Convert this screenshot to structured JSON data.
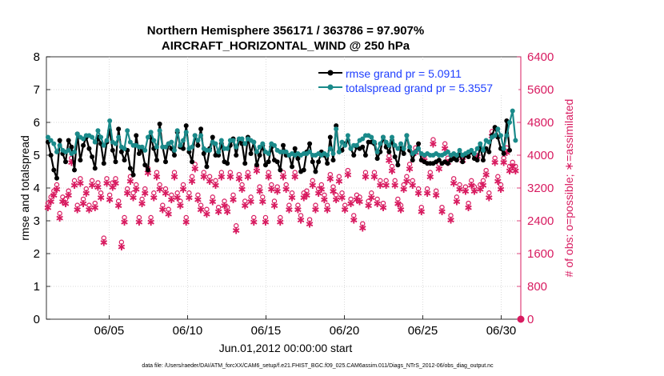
{
  "chart_data": {
    "type": "line",
    "title_line1": "Northern Hemisphere 356171 / 363786 = 97.907%",
    "title_line2": "AIRCRAFT_HORIZONTAL_WIND @ 250 hPa",
    "ylabel_left": "rmse and totalspread",
    "ylabel_right": "# of obs: o=possible; ∗=assimilated",
    "xlabel": "Jun.01,2012 00:00:00 start",
    "footer": "data file: /Users/raeder/DAI/ATM_forcXX/CAM6_setup/f.e21.FHIST_BGC.f09_025.CAM6assim.011/Diags_NTrS_2012-06/obs_diag_output.nc",
    "x_range": [
      1,
      31.25
    ],
    "y_left_range": [
      0,
      8
    ],
    "y_right_range": [
      0,
      6400
    ],
    "x_ticks": [
      {
        "value": 5,
        "label": "06/05"
      },
      {
        "value": 10,
        "label": "06/10"
      },
      {
        "value": 15,
        "label": "06/15"
      },
      {
        "value": 20,
        "label": "06/20"
      },
      {
        "value": 25,
        "label": "06/25"
      },
      {
        "value": 30,
        "label": "06/30"
      }
    ],
    "y_left_ticks": [
      "0",
      "1",
      "2",
      "3",
      "4",
      "5",
      "6",
      "7",
      "8"
    ],
    "y_right_ticks": [
      "0",
      "800",
      "1600",
      "2400",
      "3200",
      "4000",
      "4800",
      "5600",
      "6400"
    ],
    "colors": {
      "rmse": "#000000",
      "spread": "#1a8a8a",
      "obs": "#d81b60",
      "legend_text": "#1f3fff"
    },
    "series": [
      {
        "name": "rmse grand pr = 5.0911",
        "key": "rmse",
        "values": [
          5.4,
          5.0,
          4.55,
          4.3,
          5.45,
          5.05,
          4.8,
          5.45,
          5.25,
          4.55,
          5.65,
          4.85,
          5.3,
          5.55,
          5.2,
          4.95,
          4.6,
          5.55,
          5.35,
          4.75,
          5.4,
          5.75,
          5.15,
          4.8,
          5.8,
          5.1,
          4.85,
          5.15,
          4.6,
          4.4,
          5.6,
          5.05,
          5.15,
          4.7,
          4.55,
          5.55,
          5.2,
          4.85,
          5.95,
          5.25,
          4.8,
          5.35,
          5.2,
          5.0,
          5.7,
          5.25,
          5.2,
          5.9,
          5.1,
          4.8,
          5.6,
          5.3,
          5.8,
          5.05,
          4.65,
          5.2,
          5.55,
          5.0,
          5.0,
          5.35,
          4.8,
          4.75,
          5.3,
          5.5,
          5.0,
          5.45,
          5.35,
          4.75,
          5.55,
          5.05,
          5.4,
          4.7,
          5.0,
          5.3,
          4.7,
          4.8,
          5.25,
          4.85,
          4.8,
          4.55,
          5.3,
          5.0,
          5.0,
          4.65,
          5.2,
          4.9,
          4.5,
          4.55,
          5.1,
          5.35,
          4.8,
          4.5,
          4.8,
          5.1,
          5.0,
          4.75,
          5.55,
          4.85,
          5.9,
          5.1,
          5.15,
          5.35,
          5.45,
          5.2,
          5.0,
          5.25,
          5.2,
          5.25,
          5.0,
          5.4,
          5.4,
          5.35,
          4.9,
          5.1,
          5.55,
          5.25,
          5.1,
          5.45,
          4.95,
          4.7,
          5.2,
          5.05,
          5.6,
          5.15,
          4.85,
          5.1,
          5.35,
          4.85,
          4.8,
          4.75,
          4.75,
          4.75,
          4.8,
          4.85,
          4.75,
          4.8,
          4.75,
          4.85,
          4.9,
          4.85,
          5.0,
          4.8,
          5.0,
          4.95,
          5.1,
          4.9,
          4.85,
          5.25,
          4.85,
          5.2,
          5.1,
          5.6,
          5.85,
          5.55,
          5.2,
          5.05,
          6.05,
          5.15
        ]
      },
      {
        "name": "totalspread grand pr = 5.3557",
        "key": "spread",
        "values": [
          5.55,
          5.45,
          5.35,
          5.1,
          5.3,
          5.15,
          5.1,
          5.15,
          5.05,
          5.1,
          5.65,
          5.55,
          5.5,
          5.6,
          5.6,
          5.55,
          5.4,
          5.75,
          5.55,
          5.3,
          5.45,
          6.05,
          5.4,
          5.35,
          5.55,
          5.25,
          5.2,
          5.75,
          5.4,
          5.3,
          5.3,
          5.25,
          5.25,
          5.15,
          5.55,
          5.7,
          5.45,
          5.25,
          5.75,
          5.25,
          5.25,
          5.35,
          5.4,
          5.15,
          5.75,
          5.3,
          5.45,
          5.7,
          5.2,
          5.25,
          5.6,
          5.45,
          5.6,
          5.2,
          5.15,
          5.15,
          5.4,
          5.35,
          5.1,
          5.45,
          5.2,
          5.2,
          5.45,
          5.45,
          5.25,
          5.5,
          5.5,
          5.35,
          5.5,
          5.45,
          5.4,
          5.1,
          5.25,
          5.35,
          5.1,
          5.05,
          5.35,
          5.3,
          5.15,
          5.1,
          5.1,
          5.1,
          5.0,
          5.05,
          5.0,
          5.05,
          5.0,
          5.05,
          5.05,
          5.1,
          5.0,
          5.0,
          5.05,
          5.0,
          5.05,
          5.0,
          5.2,
          5.05,
          5.8,
          5.1,
          5.4,
          5.3,
          5.6,
          5.2,
          5.3,
          5.3,
          5.45,
          5.5,
          5.6,
          5.6,
          5.55,
          5.4,
          5.1,
          5.35,
          5.55,
          5.4,
          5.3,
          5.55,
          5.3,
          5.2,
          5.35,
          5.2,
          5.6,
          5.25,
          5.05,
          5.1,
          5.2,
          5.05,
          5.0,
          5.05,
          5.0,
          5.0,
          5.05,
          5.0,
          5.0,
          5.05,
          5.1,
          5.0,
          5.05,
          5.0,
          5.15,
          5.0,
          5.05,
          5.1,
          5.15,
          5.05,
          5.2,
          5.35,
          5.15,
          5.45,
          5.4,
          5.55,
          5.6,
          5.8,
          5.6,
          5.2,
          5.6,
          6.0,
          6.35,
          5.45
        ]
      }
    ],
    "obs_counts": [
      2750,
      2900,
      3050,
      3200,
      2500,
      2900,
      2850,
      3050,
      3850,
      3300,
      2700,
      3350,
      2850,
      3100,
      2700,
      3300,
      2750,
      3250,
      3000,
      1900,
      3350,
      2950,
      3250,
      3350,
      2800,
      1800,
      2400,
      3100,
      3400,
      3000,
      3200,
      2400,
      2850,
      3100,
      3600,
      2400,
      3000,
      3500,
      3200,
      2700,
      3100,
      2600,
      2950,
      3500,
      3000,
      2800,
      3200,
      2400,
      3000,
      3400,
      3700,
      2950,
      2700,
      3500,
      2600,
      3400,
      2900,
      3300,
      2650,
      3500,
      2800,
      2650,
      3500,
      2950,
      2200,
      3450,
      3200,
      2800,
      3500,
      2900,
      2400,
      3650,
      3150,
      2900,
      2400,
      3500,
      3200,
      2800,
      3150,
      2400,
      3500,
      3200,
      2700,
      3000,
      3500,
      2700,
      2450,
      3000,
      3050,
      2350,
      3300,
      2700,
      3100,
      3200,
      2950,
      2700,
      3450,
      3150,
      2950,
      3400,
      3000,
      2700,
      3550,
      2850,
      2450,
      2950,
      2900,
      2250,
      3500,
      2800,
      3000,
      3500,
      2850,
      3300,
      2750,
      3300,
      3900,
      3650,
      3300,
      2850,
      2700,
      3200,
      3400,
      3700,
      3300,
      4100,
      3100,
      2650,
      3900,
      3100,
      3500,
      4300,
      3050,
      3700,
      2650,
      4200,
      3850,
      2450,
      3350,
      2900,
      3200,
      3900,
      3150,
      2750,
      3300,
      3150,
      4000,
      3200,
      3300,
      3550,
      3000,
      4500,
      3850,
      3400,
      3200,
      3850,
      4100,
      3650,
      3750,
      3650
    ]
  }
}
